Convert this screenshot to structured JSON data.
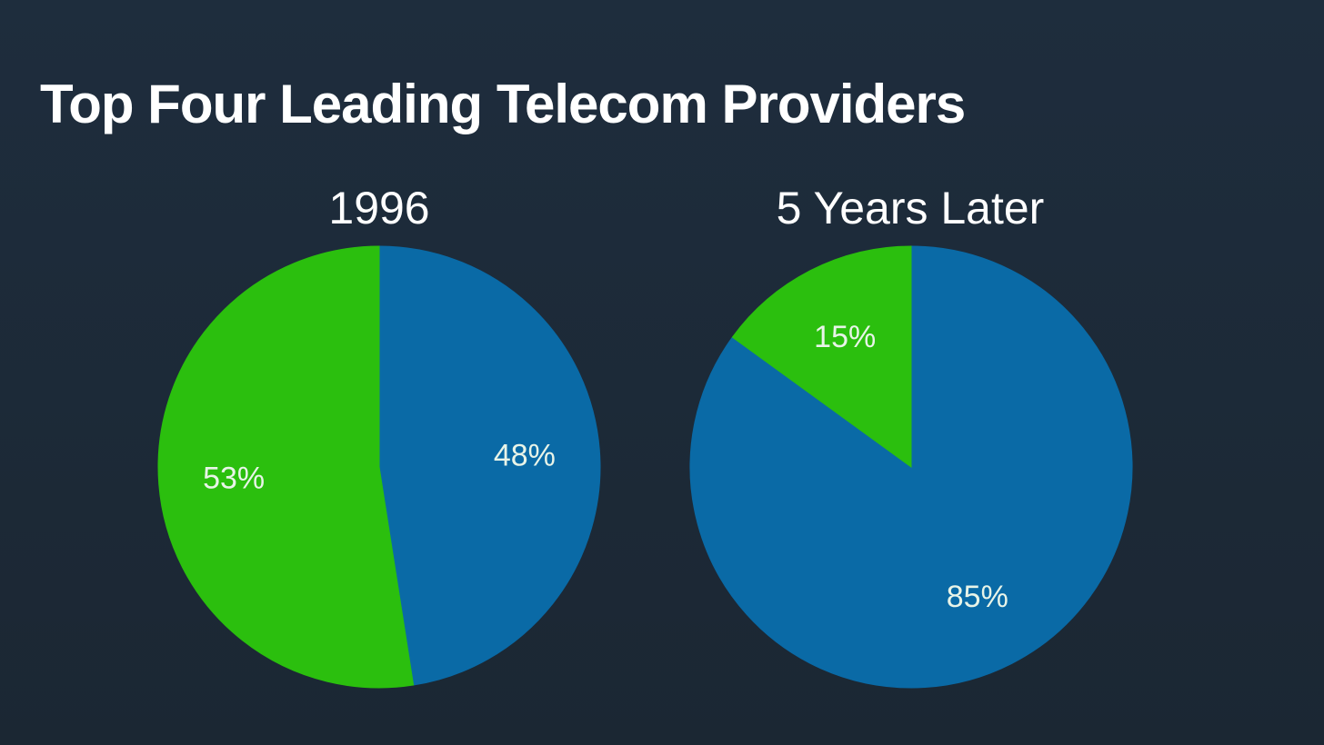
{
  "title": "Top Four Leading Telecom Providers",
  "colors": {
    "background": "#1e2d3d",
    "green": "#2bbf0e",
    "blue": "#0a6aa6"
  },
  "chart_data": [
    {
      "type": "pie",
      "title": "1996",
      "slices": [
        {
          "value": 48,
          "label": "48%",
          "color": "#0a6aa6"
        },
        {
          "value": 53,
          "label": "53%",
          "color": "#2bbf0e"
        }
      ]
    },
    {
      "type": "pie",
      "title": "5 Years Later",
      "slices": [
        {
          "value": 85,
          "label": "85%",
          "color": "#0a6aa6"
        },
        {
          "value": 15,
          "label": "15%",
          "color": "#2bbf0e"
        }
      ]
    }
  ]
}
